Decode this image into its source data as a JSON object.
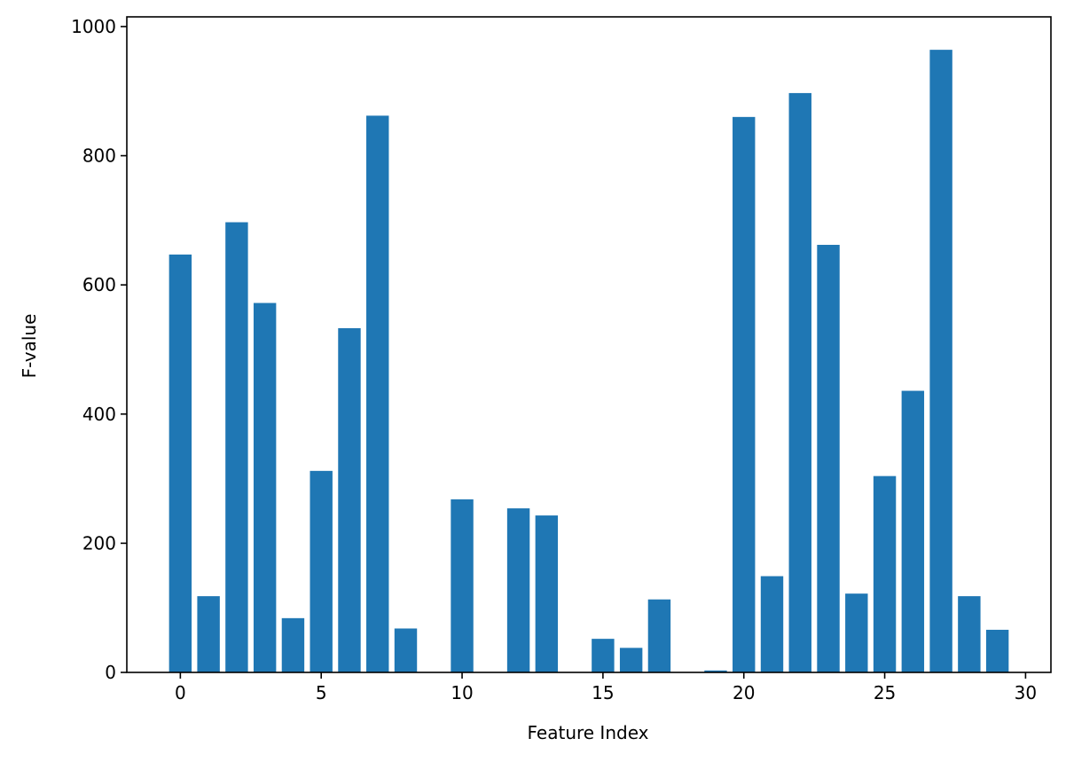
{
  "chart_data": {
    "type": "bar",
    "xlabel": "Feature Index",
    "ylabel": "F-value",
    "xlim": [
      -1.9,
      30.9
    ],
    "ylim": [
      0,
      1015
    ],
    "xticks": [
      0,
      5,
      10,
      15,
      20,
      25,
      30
    ],
    "yticks": [
      0,
      200,
      400,
      600,
      800,
      1000
    ],
    "grid": false,
    "bar_color": "#1f77b4",
    "x": [
      0,
      1,
      2,
      3,
      4,
      5,
      6,
      7,
      8,
      9,
      10,
      11,
      12,
      13,
      14,
      15,
      16,
      17,
      18,
      19,
      20,
      21,
      22,
      23,
      24,
      25,
      26,
      27,
      28,
      29
    ],
    "values": [
      647,
      118,
      697,
      572,
      84,
      312,
      533,
      862,
      68,
      0,
      268,
      0,
      254,
      243,
      0,
      52,
      38,
      113,
      0,
      3,
      860,
      149,
      897,
      662,
      122,
      304,
      436,
      964,
      118,
      66
    ]
  }
}
